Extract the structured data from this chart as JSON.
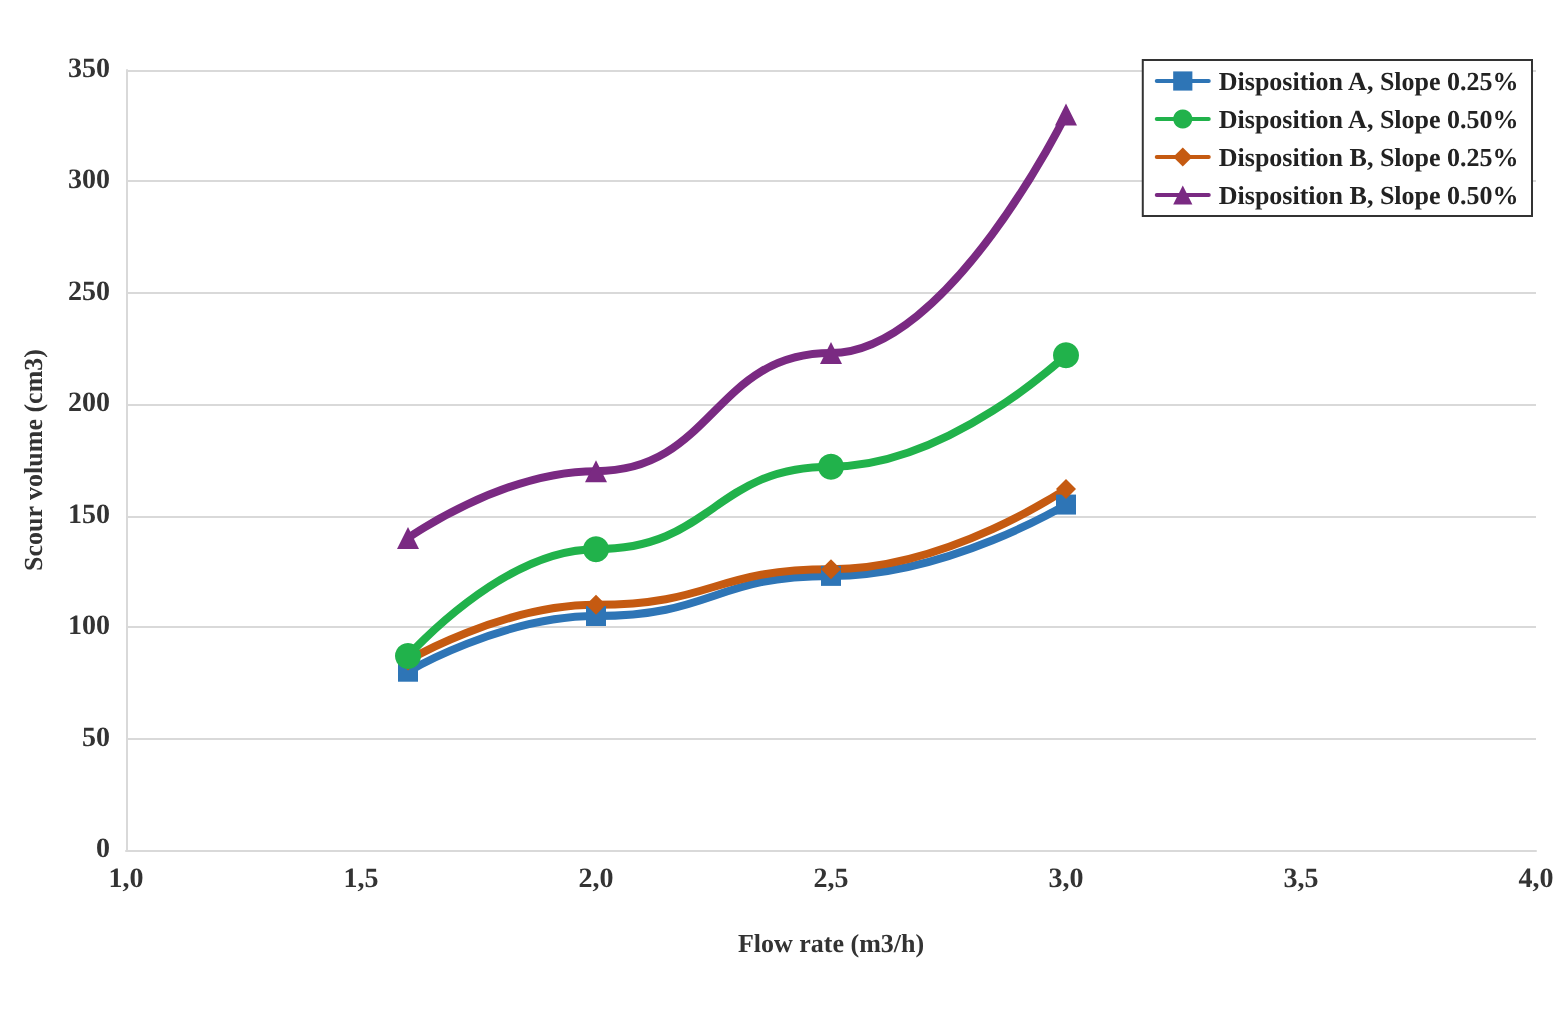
{
  "chart_data": {
    "type": "line",
    "xlabel": "Flow rate (m3/h)",
    "ylabel": "Scour volume (cm3)",
    "x": [
      1.6,
      2.0,
      2.5,
      3.0
    ],
    "series": [
      {
        "name": "Disposition A, Slope 0.25%",
        "color": "#2e75b6",
        "marker": "square",
        "values": [
          80,
          105,
          123,
          155
        ]
      },
      {
        "name": "Disposition A, Slope 0.50%",
        "color": "#21b24b",
        "marker": "circle",
        "values": [
          87,
          135,
          172,
          222
        ]
      },
      {
        "name": "Disposition B, Slope 0.25%",
        "color": "#c55a11",
        "marker": "diamond",
        "values": [
          85,
          110,
          126,
          162
        ]
      },
      {
        "name": "Disposition B, Slope 0.50%",
        "color": "#7a2a82",
        "marker": "triangle",
        "values": [
          140,
          170,
          223,
          330
        ]
      }
    ],
    "xlim": [
      1.0,
      4.0
    ],
    "xticks": [
      {
        "value": 1.0,
        "label": "1,0"
      },
      {
        "value": 1.5,
        "label": "1,5"
      },
      {
        "value": 2.0,
        "label": "2,0"
      },
      {
        "value": 2.5,
        "label": "2,5"
      },
      {
        "value": 3.0,
        "label": "3,0"
      },
      {
        "value": 3.5,
        "label": "3,5"
      },
      {
        "value": 4.0,
        "label": "4,0"
      }
    ],
    "ylim": [
      0,
      350
    ],
    "yticks": [
      0,
      50,
      100,
      150,
      200,
      250,
      300,
      350
    ],
    "grid": "y",
    "legend": "top right",
    "line_style": "solid"
  }
}
